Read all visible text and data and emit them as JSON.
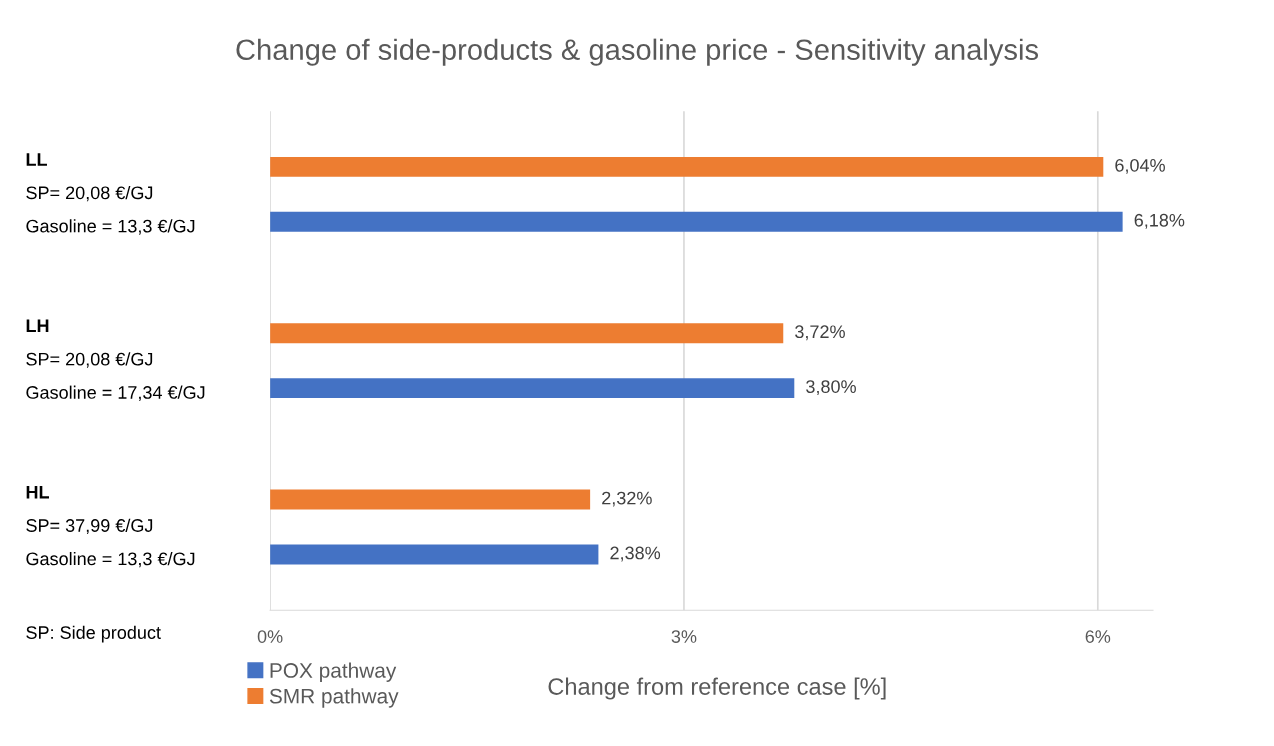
{
  "chart_data": {
    "type": "bar",
    "orientation": "horizontal",
    "title": "Change of side-products & gasoline price - Sensitivity analysis",
    "xlabel": "Change from reference case [%]",
    "categories": [
      "LL\nSP= 20,08 €/GJ\nGasoline = 13,3 €/GJ",
      "LH\nSP= 20,08 €/GJ\nGasoline = 17,34 €/GJ",
      "HL\nSP= 37,99 €/GJ\nGasoline = 13,3 €/GJ"
    ],
    "series": [
      {
        "name": "POX pathway",
        "color": "#4472c4",
        "values": [
          6.18,
          3.8,
          2.38
        ],
        "value_labels": [
          "6,18%",
          "3,80%",
          "2,38%"
        ]
      },
      {
        "name": "SMR pathway",
        "color": "#ed7d31",
        "values": [
          6.04,
          3.72,
          2.32
        ],
        "value_labels": [
          "6,04%",
          "3,72%",
          "2,32%"
        ]
      }
    ],
    "xlim": [
      0,
      6.4
    ],
    "xticks": [
      {
        "value": 0,
        "label": "0%"
      },
      {
        "value": 3,
        "label": "3%"
      },
      {
        "value": 6,
        "label": "6%"
      }
    ],
    "grid": "x",
    "legend": "bottom left",
    "annotations": [
      "SP: Side product"
    ]
  }
}
